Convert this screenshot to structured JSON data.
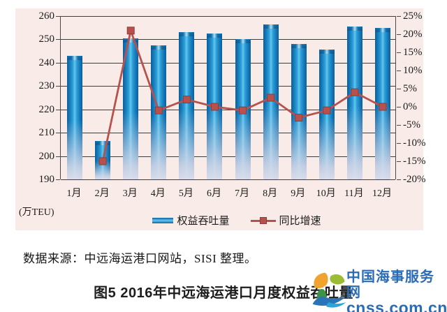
{
  "chart_data": {
    "type": "bar",
    "title": "",
    "categories": [
      "1月",
      "2月",
      "3月",
      "4月",
      "5月",
      "6月",
      "7月",
      "8月",
      "9月",
      "10月",
      "11月",
      "12月"
    ],
    "series": [
      {
        "name": "权益吞吐量",
        "type": "bar",
        "axis": "left",
        "values": [
          243,
          206.5,
          250.5,
          247.5,
          253,
          252.5,
          250,
          256.5,
          248,
          245.5,
          255.5,
          255
        ]
      },
      {
        "name": "同比增速",
        "type": "line",
        "axis": "right",
        "values": [
          null,
          -15,
          21,
          -1,
          2,
          0,
          -1,
          2.5,
          -3,
          -1,
          4,
          0
        ]
      }
    ],
    "left_axis": {
      "min": 190,
      "max": 260,
      "step": 10,
      "unit_label": "(万TEU)",
      "ticks": [
        "260",
        "250",
        "240",
        "230",
        "220",
        "210",
        "200",
        "190"
      ]
    },
    "right_axis": {
      "min": -20,
      "max": 25,
      "step": 5,
      "ticks": [
        "25%",
        "20%",
        "15%",
        "10%",
        "5%",
        "0%",
        "-5%",
        "-10%",
        "-15%",
        "-20%"
      ]
    },
    "legend_position": "bottom",
    "grid": true,
    "colors": {
      "plot_bg": "#f9ece8",
      "grid": "#3c3c3c",
      "axis_text": "#1c1c1c",
      "bar_dark": "#0b5e9d",
      "bar_mid": "#2f9fd6",
      "bar_light": "#63c7f2",
      "line": "#b8514d"
    }
  },
  "source_note": "数据来源：中远海运港口网站，SISI 整理。",
  "caption": "图5  2016年中远海运港口月度权益吞吐量",
  "watermark": {
    "name": "中国海事服务网",
    "url": "cnss.com.cn",
    "color": "#2b6cb6"
  }
}
